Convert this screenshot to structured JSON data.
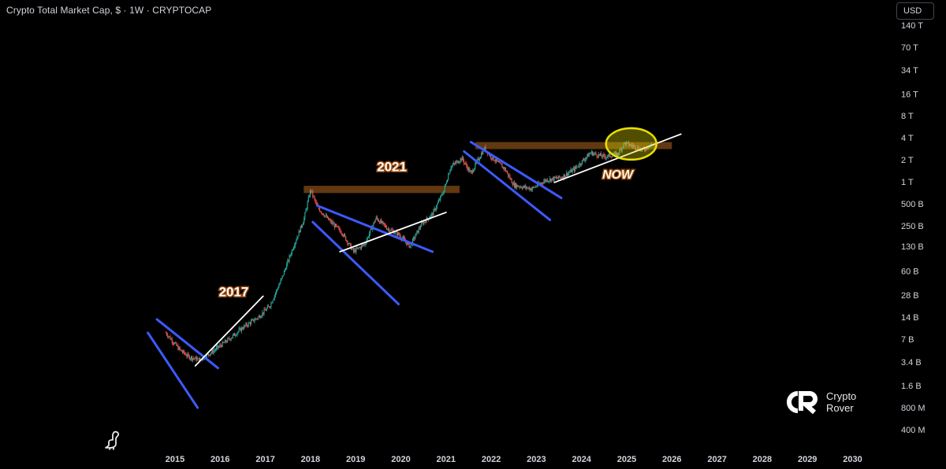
{
  "header": {
    "title": "Crypto Total Market Cap, $ · 1W · CRYPTOCAP",
    "currency_button": "USD"
  },
  "brand": {
    "line1": "Crypto",
    "line2": "Rover",
    "logo_icon": "crypto-rover-logo-icon"
  },
  "chart_data": {
    "type": "line",
    "title": "Crypto Total Market Cap, $ · 1W · CRYPTOCAP",
    "yscale": "log",
    "ylim": [
      400000000,
      140000000000000
    ],
    "y_ticks": [
      {
        "label": "140 T",
        "value": 140000000000000
      },
      {
        "label": "70 T",
        "value": 70000000000000
      },
      {
        "label": "34 T",
        "value": 34000000000000
      },
      {
        "label": "16 T",
        "value": 16000000000000
      },
      {
        "label": "8 T",
        "value": 8000000000000
      },
      {
        "label": "4 T",
        "value": 4000000000000
      },
      {
        "label": "2 T",
        "value": 2000000000000
      },
      {
        "label": "1 T",
        "value": 1000000000000
      },
      {
        "label": "500 B",
        "value": 500000000000
      },
      {
        "label": "250 B",
        "value": 250000000000
      },
      {
        "label": "130 B",
        "value": 130000000000
      },
      {
        "label": "60 B",
        "value": 60000000000
      },
      {
        "label": "28 B",
        "value": 28000000000
      },
      {
        "label": "14 B",
        "value": 14000000000
      },
      {
        "label": "7 B",
        "value": 7000000000
      },
      {
        "label": "3.4 B",
        "value": 3400000000
      },
      {
        "label": "1.6 B",
        "value": 1600000000
      },
      {
        "label": "800 M",
        "value": 800000000
      },
      {
        "label": "400 M",
        "value": 400000000
      }
    ],
    "x_ticks": [
      "2015",
      "2016",
      "2017",
      "2018",
      "2019",
      "2020",
      "2021",
      "2022",
      "2023",
      "2024",
      "2025",
      "2026",
      "2027",
      "2028",
      "2029",
      "2030"
    ],
    "xlim": [
      2014.0,
      2030.5
    ],
    "price_path": [
      [
        2014.8,
        8500000000
      ],
      [
        2014.95,
        6500000000
      ],
      [
        2015.1,
        5000000000
      ],
      [
        2015.3,
        4000000000
      ],
      [
        2015.55,
        3600000000
      ],
      [
        2015.85,
        4800000000
      ],
      [
        2016.2,
        7000000000
      ],
      [
        2016.5,
        10000000000
      ],
      [
        2016.85,
        14000000000
      ],
      [
        2017.1,
        20000000000
      ],
      [
        2017.35,
        45000000000
      ],
      [
        2017.6,
        120000000000
      ],
      [
        2017.85,
        300000000000
      ],
      [
        2018.0,
        780000000000
      ],
      [
        2018.15,
        450000000000
      ],
      [
        2018.4,
        300000000000
      ],
      [
        2018.7,
        200000000000
      ],
      [
        2018.95,
        110000000000
      ],
      [
        2019.2,
        140000000000
      ],
      [
        2019.45,
        320000000000
      ],
      [
        2019.7,
        230000000000
      ],
      [
        2019.95,
        190000000000
      ],
      [
        2020.2,
        130000000000
      ],
      [
        2020.45,
        260000000000
      ],
      [
        2020.7,
        360000000000
      ],
      [
        2020.95,
        750000000000
      ],
      [
        2021.1,
        1600000000000
      ],
      [
        2021.35,
        2100000000000
      ],
      [
        2021.55,
        1300000000000
      ],
      [
        2021.85,
        2900000000000
      ],
      [
        2022.0,
        2200000000000
      ],
      [
        2022.3,
        1500000000000
      ],
      [
        2022.5,
        900000000000
      ],
      [
        2022.9,
        800000000000
      ],
      [
        2023.2,
        1050000000000
      ],
      [
        2023.55,
        1150000000000
      ],
      [
        2023.85,
        1500000000000
      ],
      [
        2024.2,
        2500000000000
      ],
      [
        2024.5,
        2200000000000
      ],
      [
        2024.8,
        2400000000000
      ],
      [
        2024.95,
        3400000000000
      ],
      [
        2025.2,
        3000000000000
      ],
      [
        2025.35,
        2700000000000
      ],
      [
        2025.55,
        3300000000000
      ]
    ],
    "resistance_zones": [
      {
        "x0": 2017.85,
        "x1": 2021.3,
        "y_low": 700000000000,
        "y_high": 880000000000,
        "color": "#6b3e12"
      },
      {
        "x0": 2021.65,
        "x1": 2026.0,
        "y_low": 2800000000000,
        "y_high": 3500000000000,
        "color": "#6b3e12"
      }
    ],
    "trendlines_blue": [
      [
        [
          2014.4,
          8500000000
        ],
        [
          2015.5,
          800000000
        ]
      ],
      [
        [
          2014.6,
          13000000000
        ],
        [
          2015.95,
          2800000000
        ]
      ],
      [
        [
          2018.15,
          470000000000
        ],
        [
          2020.7,
          110000000000
        ]
      ],
      [
        [
          2018.05,
          280000000000
        ],
        [
          2019.95,
          21000000000
        ]
      ],
      [
        [
          2021.55,
          3500000000000
        ],
        [
          2023.55,
          600000000000
        ]
      ],
      [
        [
          2021.4,
          2600000000000
        ],
        [
          2023.3,
          300000000000
        ]
      ]
    ],
    "trendlines_white": [
      [
        [
          2015.45,
          3000000000
        ],
        [
          2016.95,
          27000000000
        ]
      ],
      [
        [
          2018.65,
          110000000000
        ],
        [
          2021.0,
          380000000000
        ]
      ],
      [
        [
          2023.4,
          980000000000
        ],
        [
          2026.2,
          4500000000000
        ]
      ]
    ],
    "highlight_ellipse": {
      "cx": 2025.1,
      "cy": 3300000000000,
      "color": "#e8e000"
    },
    "annotations": [
      {
        "text": "2017",
        "x": 2016.3,
        "y": 27000000000
      },
      {
        "text": "2021",
        "x": 2019.8,
        "y": 1400000000000
      },
      {
        "text": "NOW",
        "x": 2024.8,
        "y": 1100000000000
      }
    ],
    "colors": {
      "up": "#26a69a",
      "down": "#ef5350",
      "blue": "#3d5afe",
      "white": "#ffffff",
      "zone": "#6b3e12",
      "highlight": "#e8e000",
      "background": "#000000"
    }
  }
}
